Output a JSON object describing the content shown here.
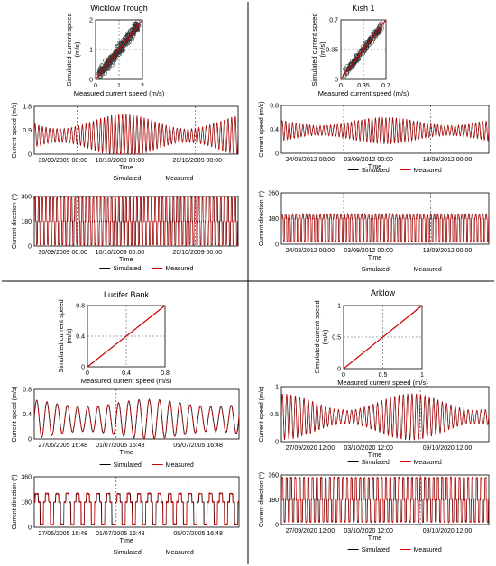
{
  "colors": {
    "simulated": "#000000",
    "measured": "#cc0000",
    "fit_line": "#cc0000",
    "guide": "#555555"
  },
  "chart_data": [
    {
      "panel": "Wicklow Trough",
      "type": "scatter",
      "title": "Wicklow Trough",
      "xlabel": "Measured current speed (m/s)",
      "ylabel": "Simulated current speed (m/s)",
      "xlim": [
        0,
        2
      ],
      "ylim": [
        0,
        2
      ],
      "xticks": [
        "0",
        "1",
        "2"
      ],
      "yticks": [
        "0",
        "1",
        "2"
      ],
      "reference_line": "y = x",
      "guide_value": 1
    },
    {
      "panel": "Wicklow Trough",
      "type": "line",
      "ylabel": "Current speed (m/s)",
      "ylim": [
        0,
        1.8
      ],
      "yticks": [
        "0",
        "0.9",
        "1.8"
      ],
      "xticks": [
        "30/09/2009 00:00",
        "10/10/2009 00:00",
        "20/10/2009 00:00"
      ],
      "xlabel": "Time",
      "series": [
        {
          "name": "Simulated"
        },
        {
          "name": "Measured"
        }
      ],
      "mean": 0.7,
      "amp_min": 0.25,
      "amp_max": 0.8,
      "osc_count": 56,
      "dashed_at": [
        0.21,
        0.79
      ]
    },
    {
      "panel": "Wicklow Trough",
      "type": "line",
      "ylabel": "Current direction (°)",
      "ylim": [
        0,
        360
      ],
      "yticks": [
        "0",
        "180",
        "360"
      ],
      "xticks": [
        "30/09/2009 00:00",
        "10/10/2009 00:00",
        "20/10/2009 00:00"
      ],
      "xlabel": "Time",
      "series": [
        {
          "name": "Simulated"
        },
        {
          "name": "Measured"
        }
      ],
      "low": 10,
      "high": 350,
      "mid": 180,
      "osc_count": 56,
      "dashed_at": [
        0.21,
        0.79
      ]
    },
    {
      "panel": "Kish 1",
      "type": "scatter",
      "title": "Kish 1",
      "xlabel": "Measured current speed (m/s)",
      "ylabel": "Simulated current speed (m/s)",
      "xlim": [
        0,
        0.7
      ],
      "ylim": [
        0,
        0.7
      ],
      "xticks": [
        "0",
        "0.35",
        "0.7"
      ],
      "yticks": [
        "0",
        "0.35",
        "0.7"
      ],
      "reference_line": "y = x",
      "guide_value": 0.35
    },
    {
      "panel": "Kish 1",
      "type": "line",
      "ylabel": "Current speed (m/s)",
      "ylim": [
        0,
        0.8
      ],
      "yticks": [
        "0",
        "0.4",
        "0.8"
      ],
      "xticks": [
        "24/08/2012 00:00",
        "03/09/2012 00:00",
        "13/09/2012 00:00"
      ],
      "xlabel": "Time",
      "series": [
        {
          "name": "Simulated"
        },
        {
          "name": "Measured"
        }
      ],
      "mean": 0.38,
      "amp_min": 0.08,
      "amp_max": 0.22,
      "osc_count": 60,
      "dashed_at": [
        0.3,
        0.72
      ]
    },
    {
      "panel": "Kish 1",
      "type": "line",
      "ylabel": "Current direction (°)",
      "ylim": [
        0,
        360
      ],
      "yticks": [
        "0",
        "180",
        "360"
      ],
      "xticks": [
        "24/08/2012 00:00",
        "03/09/2012 00:00",
        "13/09/2012 00:00"
      ],
      "xlabel": "Time",
      "series": [
        {
          "name": "Simulated"
        },
        {
          "name": "Measured"
        }
      ],
      "low": 20,
      "high": 210,
      "mid": 180,
      "osc_count": 60,
      "dashed_at": [
        0.3,
        0.72
      ]
    },
    {
      "panel": "Lucifer Bank",
      "type": "scatter",
      "title": "Lucifer Bank",
      "xlabel": "Measured current speed (m/s)",
      "ylabel": "Simulated current speed (m/s)",
      "xlim": [
        0,
        0.8
      ],
      "ylim": [
        0,
        0.8
      ],
      "xticks": [
        "0",
        "0.4",
        "0.8"
      ],
      "yticks": [
        "0",
        "0.4",
        "0.8"
      ],
      "reference_line": "y = x",
      "guide_value": 0.4
    },
    {
      "panel": "Lucifer Bank",
      "type": "line",
      "ylabel": "Current speed (m/s)",
      "ylim": [
        0,
        0.8
      ],
      "yticks": [
        "0",
        "0.4",
        "0.8"
      ],
      "xticks": [
        "27/06/2005 16:48",
        "01/07/2005 16:48",
        "05/07/2005 16:48"
      ],
      "xlabel": "Time",
      "series": [
        {
          "name": "Simulated"
        },
        {
          "name": "Measured"
        }
      ],
      "mean": 0.32,
      "amp_min": 0.2,
      "amp_max": 0.32,
      "osc_count": 20,
      "dashed_at": [
        0.4,
        0.75
      ]
    },
    {
      "panel": "Lucifer Bank",
      "type": "line",
      "ylabel": "Current direction (°)",
      "ylim": [
        0,
        360
      ],
      "yticks": [
        "0",
        "180",
        "360"
      ],
      "xticks": [
        "27/06/2005 16:48",
        "01/07/2005 16:48",
        "05/07/2005 16:48"
      ],
      "xlabel": "Time",
      "series": [
        {
          "name": "Simulated"
        },
        {
          "name": "Measured"
        }
      ],
      "low": 20,
      "high": 240,
      "mid": 180,
      "osc_count": 20,
      "dashed_at": [
        0.4,
        0.75
      ]
    },
    {
      "panel": "Arklow",
      "type": "scatter",
      "title": "Arklow",
      "xlabel": "Measured current speed (m/s)",
      "ylabel": "Simulated current speed (m/s)",
      "xlim": [
        0,
        1
      ],
      "ylim": [
        0,
        1
      ],
      "xticks": [
        "0",
        "0.5",
        "1"
      ],
      "yticks": [
        "0",
        "0.5",
        "1"
      ],
      "reference_line": "y = x",
      "guide_value": 0.5
    },
    {
      "panel": "Arklow",
      "type": "line",
      "ylabel": "Current speed (m/s)",
      "ylim": [
        0,
        1
      ],
      "yticks": [
        "0",
        "0.5",
        "1"
      ],
      "xticks": [
        "27/09/2020 12:00",
        "03/10/2020 12:00",
        "09/10/2020 12:00"
      ],
      "xlabel": "Time",
      "series": [
        {
          "name": "Simulated"
        },
        {
          "name": "Measured"
        }
      ],
      "mean": 0.45,
      "amp_min": 0.12,
      "amp_max": 0.42,
      "osc_count": 48,
      "dashed_at": [
        0.35,
        0.67
      ]
    },
    {
      "panel": "Arklow",
      "type": "line",
      "ylabel": "Current direction (°)",
      "ylim": [
        0,
        360
      ],
      "yticks": [
        "0",
        "180",
        "360"
      ],
      "xticks": [
        "27/09/2020 12:00",
        "03/10/2020 12:00",
        "09/10/2020 12:00"
      ],
      "xlabel": "Time",
      "series": [
        {
          "name": "Simulated"
        },
        {
          "name": "Measured"
        }
      ],
      "low": 20,
      "high": 340,
      "mid": 180,
      "osc_count": 48,
      "dashed_at": [
        0.35,
        0.67
      ]
    }
  ]
}
